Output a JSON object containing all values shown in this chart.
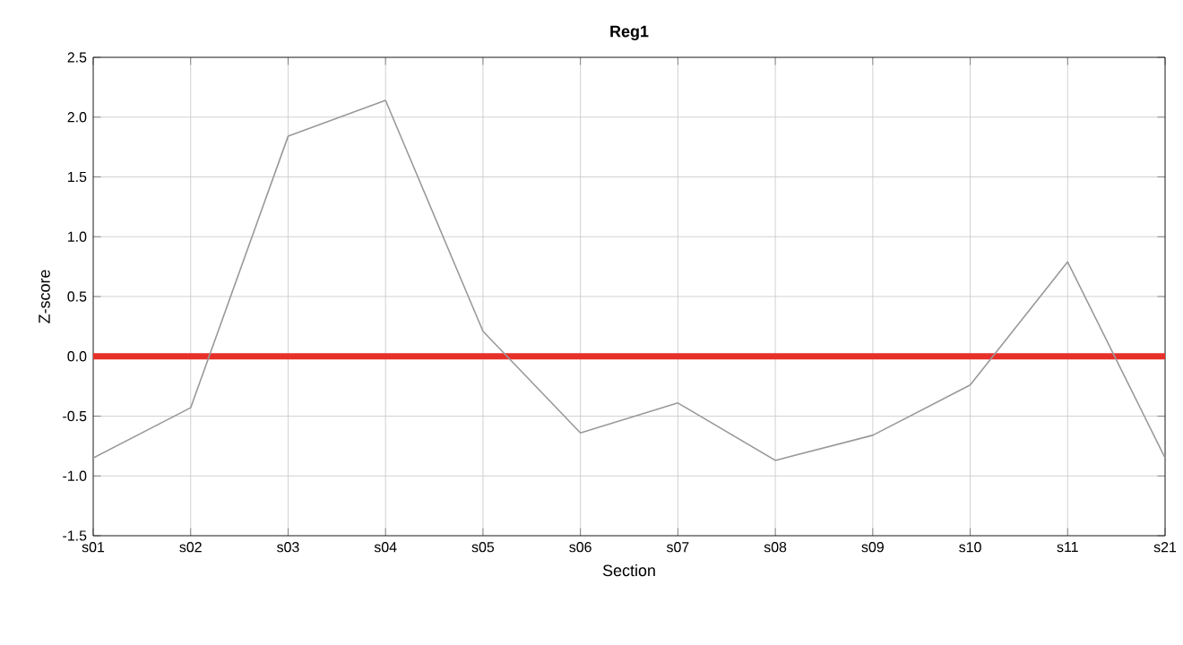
{
  "chart_data": {
    "type": "line",
    "title": "Reg1",
    "xlabel": "Section",
    "ylabel": "Z-score",
    "categories": [
      "s01",
      "s02",
      "s03",
      "s04",
      "s05",
      "s06",
      "s07",
      "s08",
      "s09",
      "s10",
      "s11",
      "s21"
    ],
    "series": [
      {
        "color": "#999999",
        "values": [
          -0.85,
          -0.43,
          1.84,
          2.14,
          0.21,
          -0.64,
          -0.39,
          -0.87,
          -0.66,
          -0.24,
          0.79,
          -0.85
        ]
      }
    ],
    "ylim": [
      -1.5,
      2.5
    ],
    "yticks": [
      {
        "value": -1.5,
        "label": "-1.5"
      },
      {
        "value": -1.0,
        "label": "-1.0"
      },
      {
        "value": -0.5,
        "label": "-0.5"
      },
      {
        "value": 0,
        "label": "0.0"
      },
      {
        "value": 0.5,
        "label": "0.5"
      },
      {
        "value": 1.0,
        "label": "1.0"
      },
      {
        "value": 1.5,
        "label": "1.5"
      },
      {
        "value": 2.0,
        "label": "2.0"
      },
      {
        "value": 2.5,
        "label": "2.5"
      }
    ],
    "ref_lines": [
      {
        "axis": "y",
        "value": 0,
        "color": "#e8302a"
      }
    ],
    "grid": true,
    "marker": "none",
    "line_style": "solid"
  }
}
